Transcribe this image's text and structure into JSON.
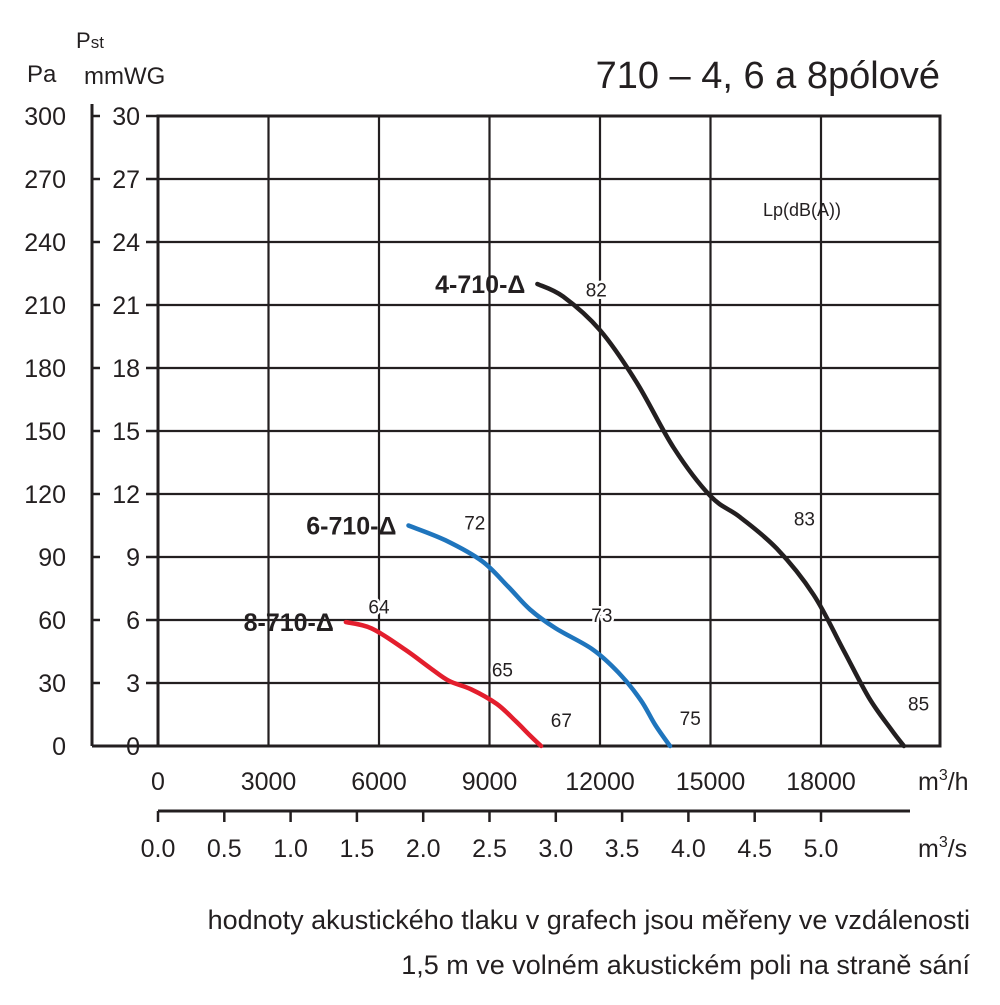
{
  "title": "710 – 4, 6 a 8pólové",
  "note_line1": "hodnoty akustického tlaku v grafech jsou měřeny ve vzdálenosti",
  "note_line2": "1,5 m ve volném akustickém poli na straně sání",
  "chart_data": {
    "type": "line",
    "title": "710 – 4, 6 a 8pólové",
    "ylabel": "Pst",
    "yunit_left": "Pa",
    "yunit_right": "mmWG",
    "xunit_top": "m3/h",
    "xunit_bottom": "m3/s",
    "annotation": "Lp(dB(A))",
    "grid": true,
    "xlim": [
      0,
      20500
    ],
    "ylim": [
      0,
      30
    ],
    "x_ticks_m3h": [
      "0",
      "3000",
      "6000",
      "9000",
      "12000",
      "15000",
      "18000"
    ],
    "x_ticks_m3s": [
      "0.0",
      "0.5",
      "1.0",
      "1.5",
      "2.0",
      "2.5",
      "3.0",
      "3.5",
      "4.0",
      "4.5",
      "5.0"
    ],
    "y_ticks_pa": [
      "0",
      "30",
      "60",
      "90",
      "120",
      "150",
      "180",
      "210",
      "240",
      "270",
      "300"
    ],
    "y_ticks_mmwg": [
      "0",
      "3",
      "6",
      "9",
      "12",
      "15",
      "18",
      "21",
      "24",
      "27",
      "30"
    ],
    "series": [
      {
        "name": "4-710-Δ",
        "color": "#231f20",
        "x": [
          10300,
          11000,
          12000,
          13000,
          14000,
          15000,
          15800,
          16800,
          17800,
          18600,
          19300,
          19900,
          20250
        ],
        "y": [
          22.0,
          21.4,
          19.8,
          17.3,
          14.2,
          11.9,
          10.9,
          9.4,
          7.2,
          4.6,
          2.3,
          0.8,
          0
        ],
        "labels": [
          {
            "text": "82",
            "x": 11900,
            "y": 21.4
          },
          {
            "text": "83",
            "x": 17550,
            "y": 10.5
          },
          {
            "text": "85",
            "x": 20650,
            "y": 1.7
          }
        ]
      },
      {
        "name": "6-710-Δ",
        "color": "#1f75bd",
        "x": [
          6800,
          7800,
          8800,
          9500,
          10100,
          10800,
          11800,
          12500,
          13100,
          13500,
          13900
        ],
        "y": [
          10.5,
          9.8,
          8.8,
          7.6,
          6.5,
          5.6,
          4.6,
          3.5,
          2.2,
          1.0,
          0
        ],
        "labels": [
          {
            "text": "72",
            "x": 8600,
            "y": 10.3
          },
          {
            "text": "73",
            "x": 12050,
            "y": 5.9
          },
          {
            "text": "75",
            "x": 14450,
            "y": 1.0
          }
        ]
      },
      {
        "name": "8-710-Δ",
        "color": "#e31e2d",
        "x": [
          5100,
          5800,
          6700,
          7400,
          7900,
          8500,
          9200,
          9700,
          10100,
          10400
        ],
        "y": [
          5.9,
          5.6,
          4.6,
          3.7,
          3.1,
          2.7,
          2.0,
          1.2,
          0.5,
          0
        ],
        "labels": [
          {
            "text": "64",
            "x": 6000,
            "y": 6.3
          },
          {
            "text": "65",
            "x": 9350,
            "y": 3.3
          },
          {
            "text": "67",
            "x": 10950,
            "y": 0.9
          }
        ]
      }
    ]
  }
}
